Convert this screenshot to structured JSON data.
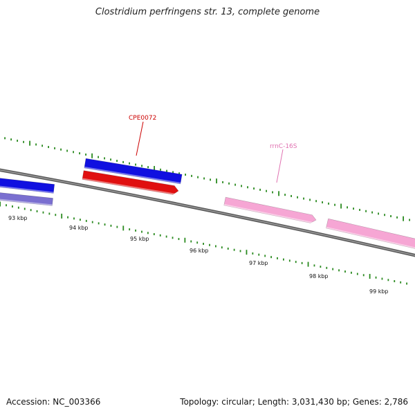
{
  "title": "Clostridium perfringens str. 13, complete genome",
  "footer": {
    "accession_label": "Accession:",
    "accession": "NC_003366",
    "topology_label": "Topology:",
    "topology": "circular",
    "length_label": "Length:",
    "length": "3,031,430 bp",
    "genes_label": "Genes:",
    "genes": "2,786"
  },
  "colors": {
    "backbone": "#7a7a7a",
    "tick": "#2a8a1f",
    "cds_forward": "#1010e0",
    "cds_reverse_gene": "#e01010",
    "cds_reverse_pale": "#7a6fd0",
    "rrna": "#f6a6d4",
    "label_red": "#cc0000",
    "label_pink": "#e070b0"
  },
  "scale": {
    "tick_labels": [
      "93 kbp",
      "94 kbp",
      "95 kbp",
      "96 kbp",
      "97 kbp",
      "98 kbp",
      "99 kbp"
    ]
  },
  "features": [
    {
      "label": "CPE0072",
      "type": "gene"
    },
    {
      "label": "rrnC-16S",
      "type": "rRNA"
    }
  ]
}
